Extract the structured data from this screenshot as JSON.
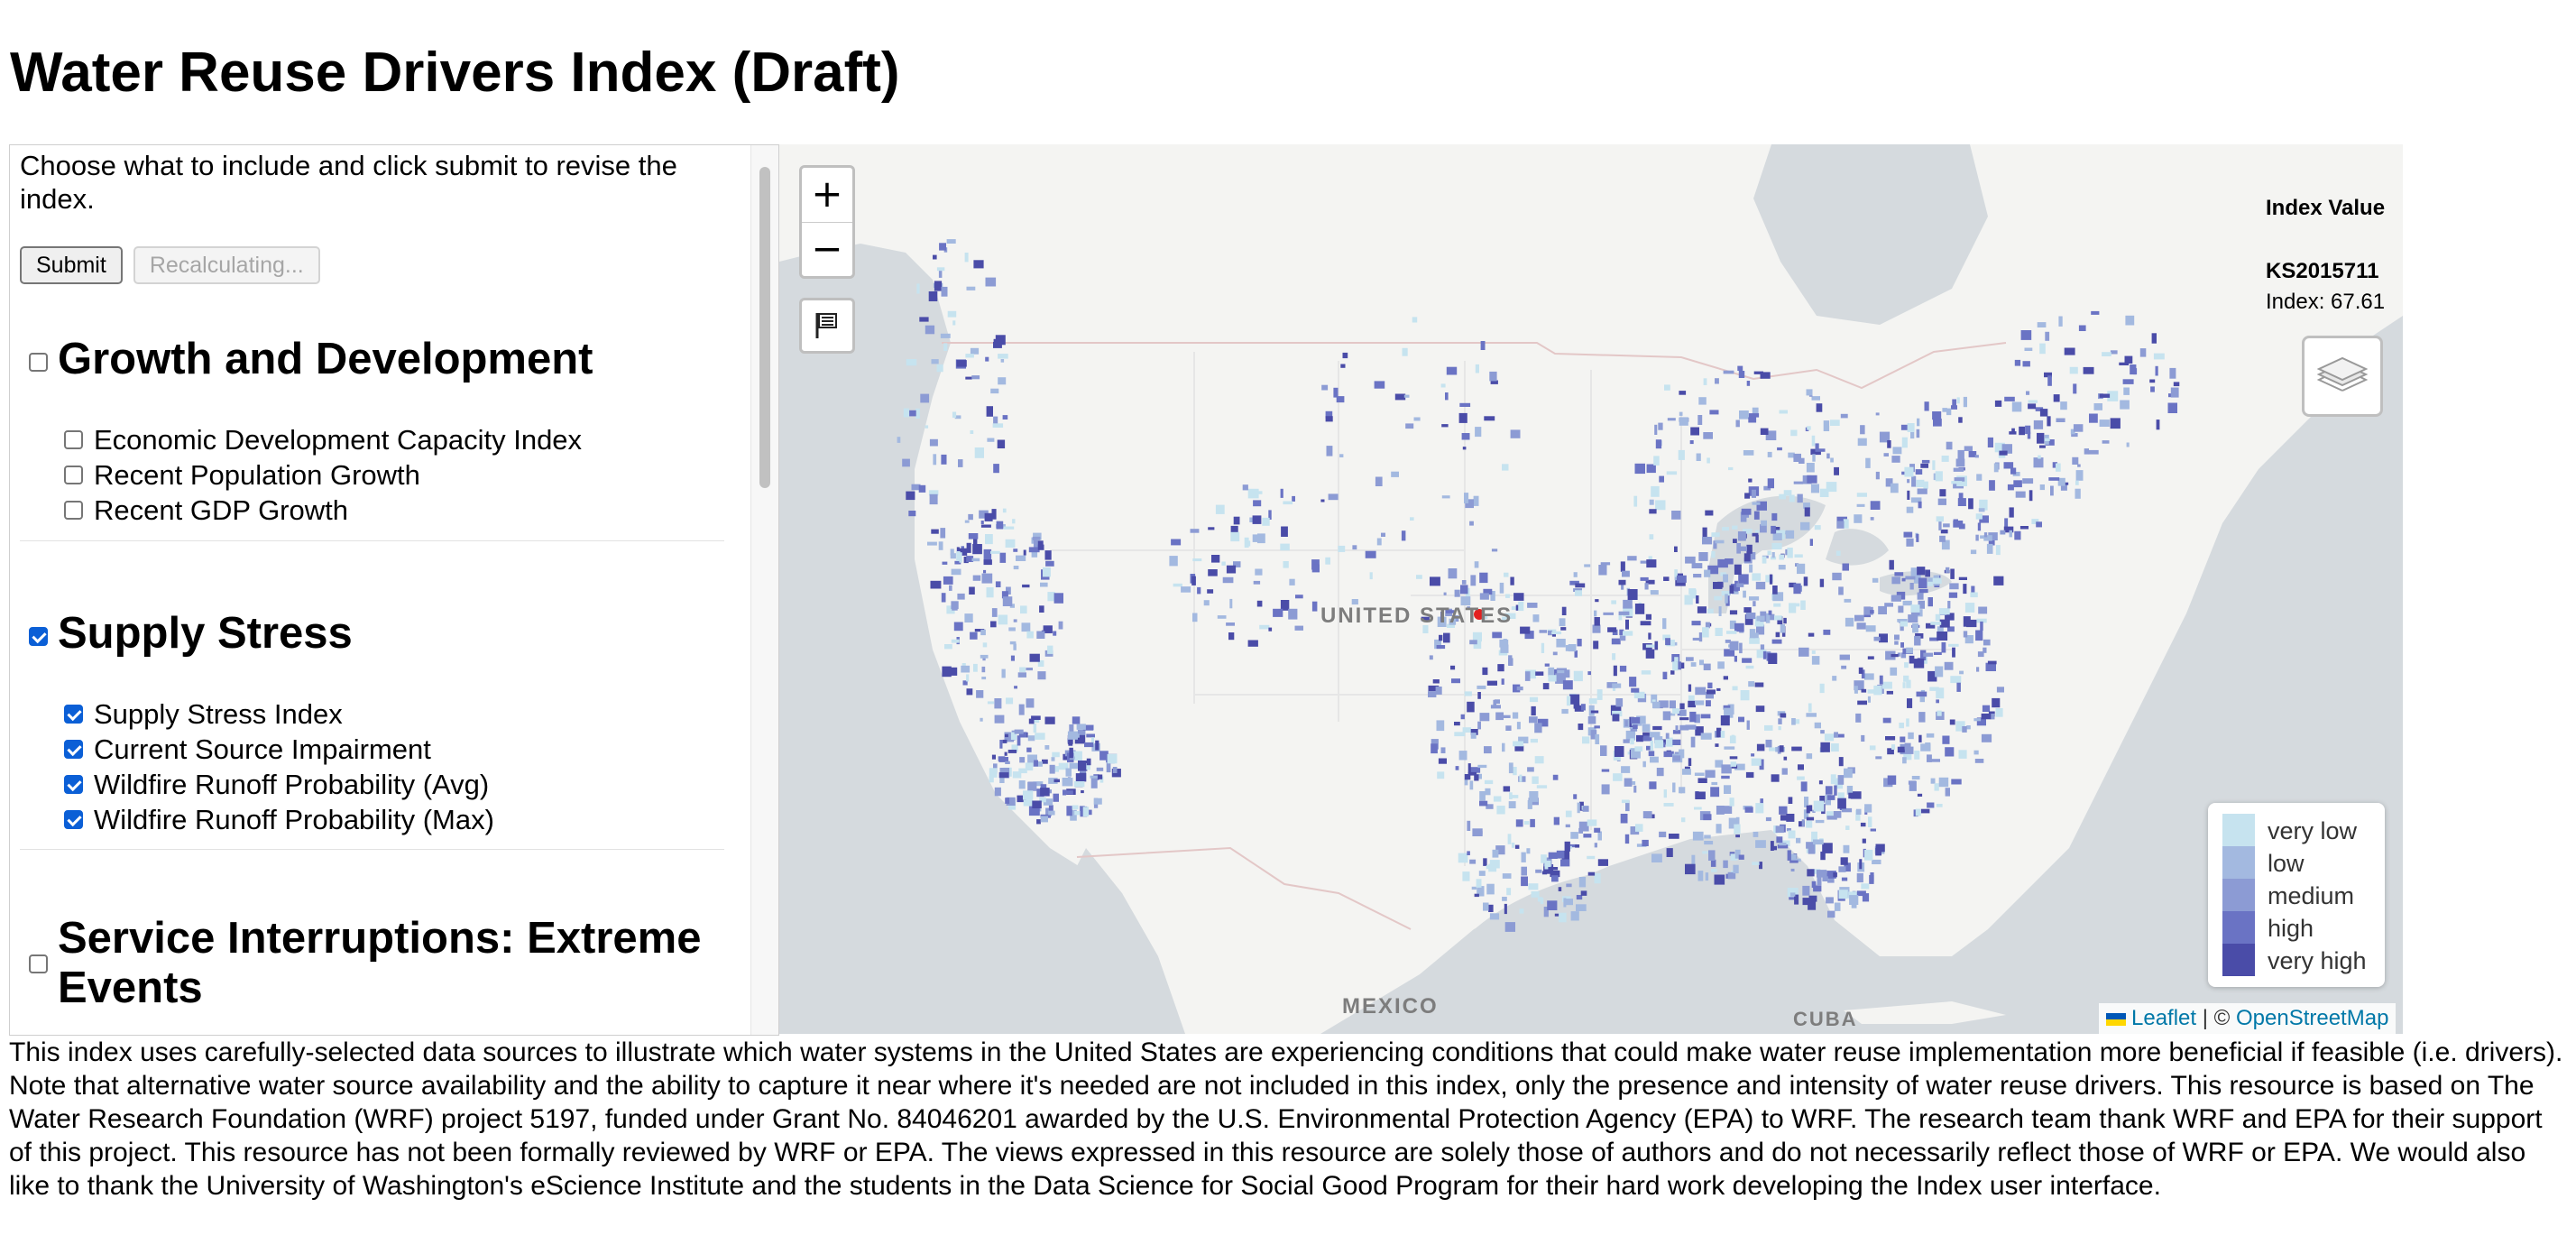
{
  "page": {
    "title": "Water Reuse Drivers Index (Draft)"
  },
  "panel": {
    "intro": "Choose what to include and click submit to revise the index.",
    "submit_label": "Submit",
    "recalculating_label": "Recalculating...",
    "groups": [
      {
        "title": "Growth and Development",
        "checked": false,
        "items": [
          {
            "label": "Economic Development Capacity Index",
            "checked": false
          },
          {
            "label": "Recent Population Growth",
            "checked": false
          },
          {
            "label": "Recent GDP Growth",
            "checked": false
          }
        ]
      },
      {
        "title": "Supply Stress",
        "checked": true,
        "items": [
          {
            "label": "Supply Stress Index",
            "checked": true
          },
          {
            "label": "Current Source Impairment",
            "checked": true
          },
          {
            "label": "Wildfire Runoff Probability (Avg)",
            "checked": true
          },
          {
            "label": "Wildfire Runoff Probability (Max)",
            "checked": true
          }
        ]
      },
      {
        "title": "Service Interruptions: Extreme Events",
        "checked": false,
        "items": []
      }
    ]
  },
  "map": {
    "zoom_in": "+",
    "zoom_out": "−",
    "info": {
      "title": "Index Value",
      "system_id": "KS2015711",
      "index_text": "Index: 67.61"
    },
    "labels": {
      "country": "UNITED STATES",
      "mexico": "MEXICO",
      "cuba": "CUBA"
    },
    "legend": [
      {
        "label": "very low",
        "color": "#c6e3ef"
      },
      {
        "label": "low",
        "color": "#a3b9e0"
      },
      {
        "label": "medium",
        "color": "#8c9bd4"
      },
      {
        "label": "high",
        "color": "#6a73c4"
      },
      {
        "label": "very high",
        "color": "#4a4ca8"
      }
    ],
    "attribution": {
      "leaflet": "Leaflet",
      "separator": " | © ",
      "osm": "OpenStreetMap"
    }
  },
  "description": "This index uses carefully-selected data sources to illustrate which water systems in the United States are experiencing conditions that could make water reuse implementation more beneficial if feasible (i.e. drivers). Note that alternative water source availability and the ability to capture it near where it's needed are not included in this index, only the presence and intensity of water reuse drivers. This resource is based on The Water Research Foundation (WRF) project 5197, funded under Grant No. 84046201 awarded by the U.S. Environmental Protection Agency (EPA) to WRF. The research team thank WRF and EPA for their support of this project. This resource has not been formally reviewed by WRF or EPA. The views expressed in this resource are solely those of authors and do not necessarily reflect those of WRF or EPA. We would also like to thank the University of Washington's eScience Institute and the students in the Data Science for Social Good Program for their hard work developing the Index user interface."
}
